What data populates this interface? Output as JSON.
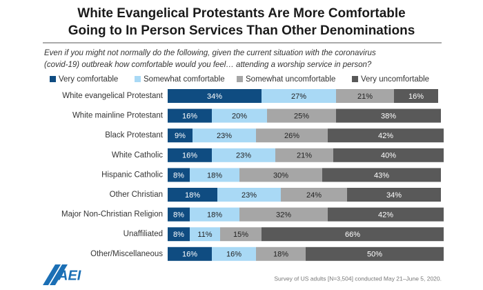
{
  "chart_data": {
    "type": "bar",
    "orientation": "horizontal",
    "stacked": true,
    "title": [
      "White Evangelical Protestants Are More Comfortable",
      "Going to In Person Services Than Other Denominations"
    ],
    "subtitle": [
      "Even if you might not normally do the following, given the current situation with the coronavirus",
      "(covid-19) outbreak how comfortable would you feel… attending a worship service in person?"
    ],
    "categories": [
      "White evangelical Protestant",
      "White mainline Protestant",
      "Black Protestant",
      "White Catholic",
      "Hispanic Catholic",
      "Other Christian",
      "Major Non-Christian Religion",
      "Unaffiliated",
      "Other/Miscellaneous"
    ],
    "series": [
      {
        "name": "Very comfortable",
        "color": "#0f4c81",
        "label_color": "#ffffff",
        "values": [
          34,
          16,
          9,
          16,
          8,
          18,
          8,
          8,
          16
        ],
        "value_labels": [
          "34%",
          "16%",
          "9%",
          "16%",
          "8%",
          "18%",
          "8%",
          "8%",
          "16%"
        ]
      },
      {
        "name": "Somewhat comfortable",
        "color": "#a9d9f5",
        "label_color": "#222222",
        "values": [
          27,
          20,
          23,
          23,
          18,
          23,
          18,
          11,
          16
        ],
        "value_labels": [
          "27%",
          "20%",
          "23%",
          "23%",
          "18%",
          "23%",
          "18%",
          "11%",
          "16%"
        ]
      },
      {
        "name": "Somewhat uncomfortable",
        "color": "#a6a6a6",
        "label_color": "#222222",
        "values": [
          21,
          25,
          26,
          21,
          30,
          24,
          32,
          15,
          18
        ],
        "value_labels": [
          "21%",
          "25%",
          "26%",
          "21%",
          "30%",
          "24%",
          "32%",
          "15%",
          "18%"
        ]
      },
      {
        "name": "Very uncomfortable",
        "color": "#595959",
        "label_color": "#ffffff",
        "values": [
          16,
          38,
          42,
          40,
          43,
          34,
          42,
          66,
          50
        ],
        "value_labels": [
          "16%",
          "38%",
          "42%",
          "40%",
          "43%",
          "34%",
          "42%",
          "66%",
          "50%"
        ]
      }
    ],
    "source": "Survey of US adults [N=3,504] conducted May 21–June 5, 2020.",
    "logo": "AEI"
  }
}
